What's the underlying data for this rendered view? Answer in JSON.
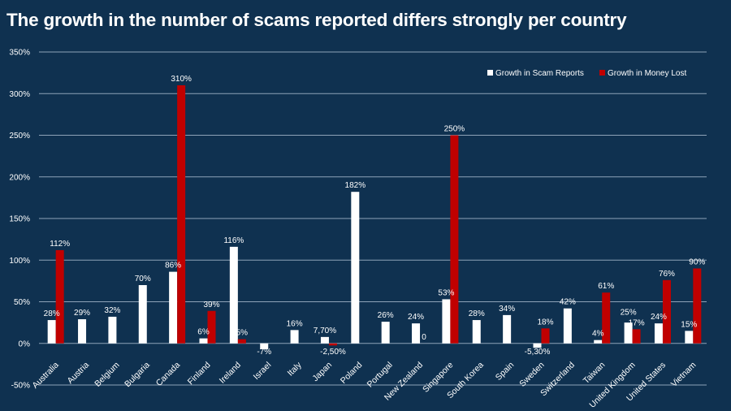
{
  "chart_data": {
    "type": "bar",
    "title": "The growth in the number of scams reported differs strongly per country",
    "xlabel": "",
    "ylabel": "",
    "ylim": [
      -50,
      350
    ],
    "yticks": [
      "-50%",
      "0%",
      "50%",
      "100%",
      "150%",
      "200%",
      "250%",
      "300%",
      "350%"
    ],
    "ytick_values": [
      -50,
      0,
      50,
      100,
      150,
      200,
      250,
      300,
      350
    ],
    "grid": true,
    "legend_position": "top-right",
    "categories": [
      "Australia",
      "Austria",
      "Belgium",
      "Bulgaria",
      "Canada",
      "Finland",
      "Ireland",
      "Israel",
      "Italy",
      "Japan",
      "Poland",
      "Portugal",
      "New Zealand",
      "Singapore",
      "South Korea",
      "Spain",
      "Sweden",
      "Switzerland",
      "Taiwan",
      "United Kingdom",
      "United States",
      "Vietnam"
    ],
    "series": [
      {
        "name": "Growth in Scam Reports",
        "color": "#ffffff",
        "values": [
          28,
          29,
          32,
          70,
          86,
          6,
          116,
          -7,
          16,
          7.7,
          182,
          26,
          24,
          53,
          28,
          34,
          -5.3,
          42,
          4,
          25,
          24,
          15
        ],
        "labels": [
          "28%",
          "29%",
          "32%",
          "70%",
          "86%",
          "6%",
          "116%",
          "-7%",
          "16%",
          "7,70%",
          "182%",
          "26%",
          "24%",
          "53%",
          "28%",
          "34%",
          "-5,30%",
          "42%",
          "4%",
          "25%",
          "24%",
          "15%"
        ]
      },
      {
        "name": "Growth in Money Lost",
        "color": "#c00000",
        "values": [
          112,
          null,
          null,
          null,
          310,
          39,
          5,
          null,
          null,
          -2.5,
          null,
          null,
          0,
          250,
          null,
          null,
          18,
          null,
          61,
          17,
          76,
          90
        ],
        "labels": [
          "112%",
          null,
          null,
          null,
          "310%",
          "39%",
          "5%",
          null,
          null,
          "-2,50%",
          null,
          null,
          "0",
          "250%",
          null,
          null,
          "18%",
          null,
          "61%",
          "17%",
          "76%",
          "90%"
        ]
      }
    ],
    "colors": {
      "background": "#0f3150",
      "grid": "#8ea3b8"
    }
  }
}
